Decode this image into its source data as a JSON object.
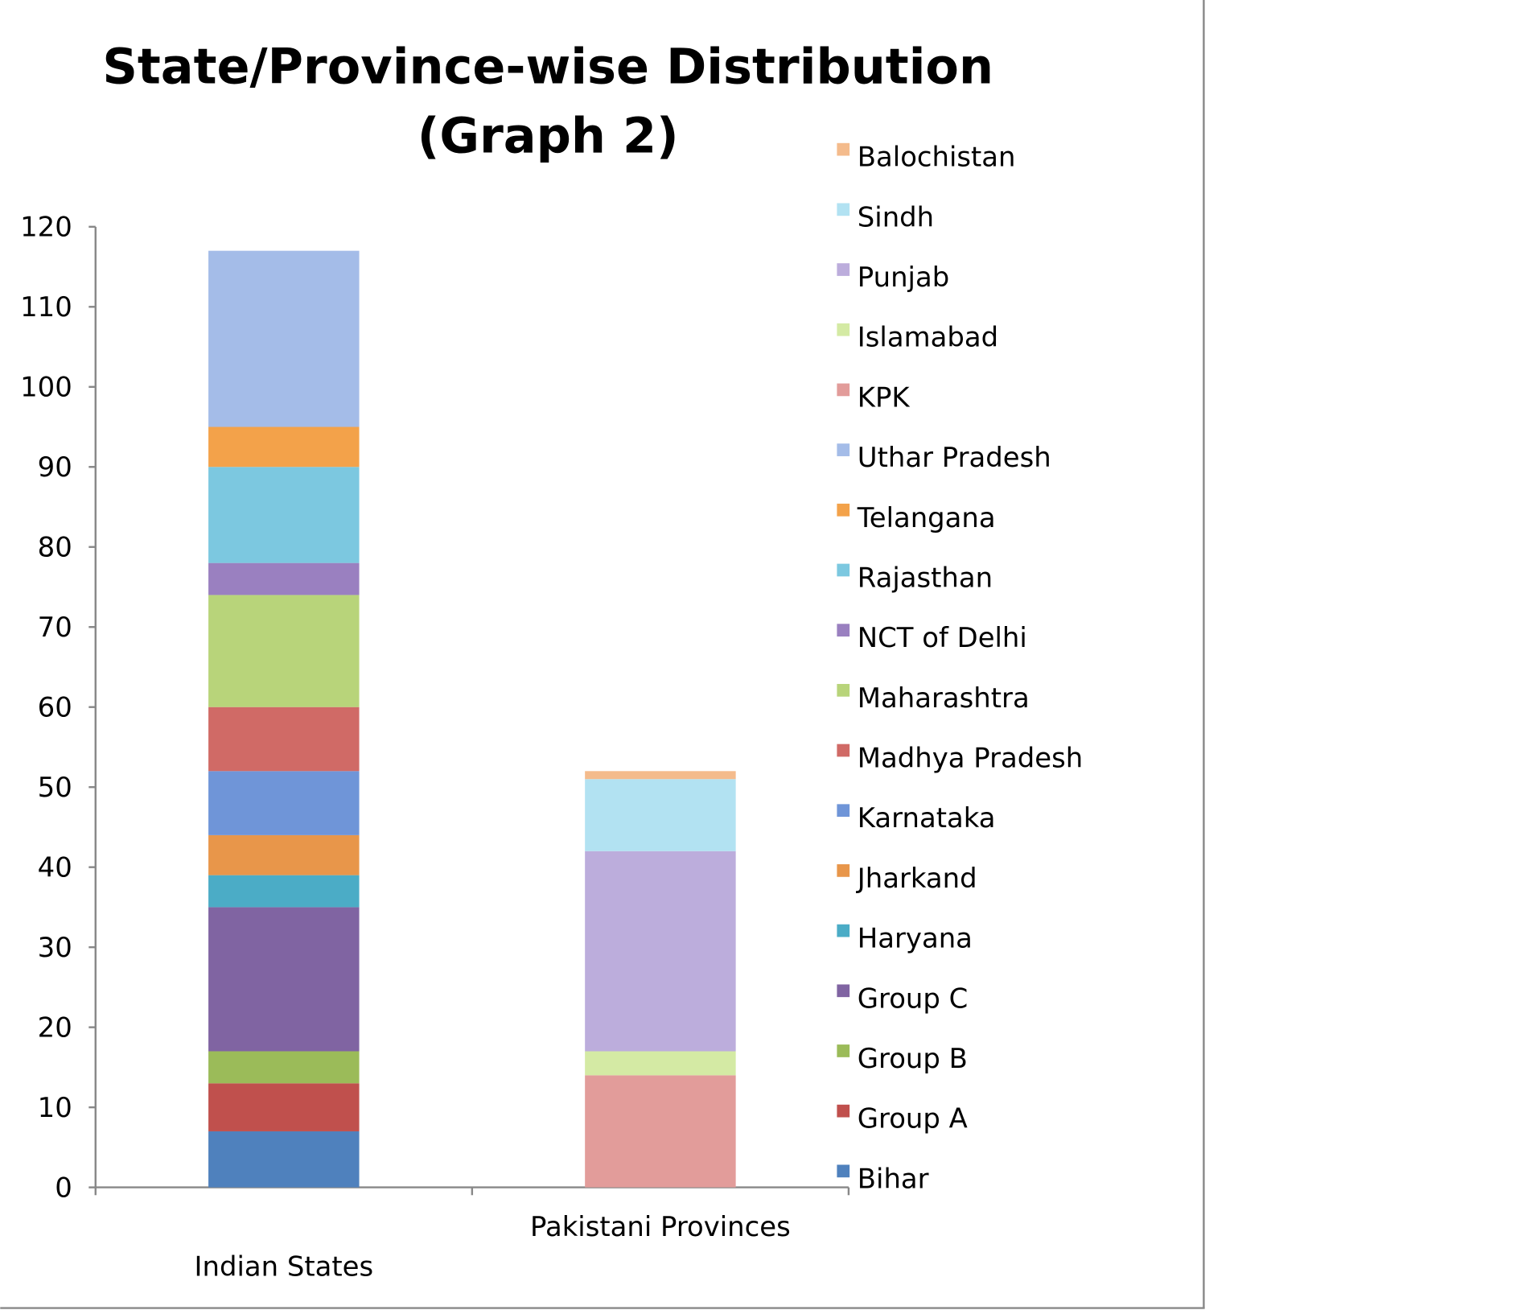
{
  "chart_data": {
    "type": "stacked_bar",
    "title": [
      "State/Province-wise Distribution",
      "(Graph 2)"
    ],
    "categories": [
      "Indian States",
      "Pakistani Provinces"
    ],
    "ylim": [
      0,
      120
    ],
    "yticks": [
      0,
      10,
      20,
      30,
      40,
      50,
      60,
      70,
      80,
      90,
      100,
      110,
      120
    ],
    "legend": "right",
    "series": [
      {
        "name": "Bihar",
        "color": "#4f81bd",
        "values": [
          7,
          null
        ]
      },
      {
        "name": "Group A",
        "color": "#c0504d",
        "values": [
          6,
          null
        ]
      },
      {
        "name": "Group B",
        "color": "#9bbb59",
        "values": [
          4,
          null
        ]
      },
      {
        "name": "Group C",
        "color": "#8064a2",
        "values": [
          18,
          null
        ]
      },
      {
        "name": "Haryana",
        "color": "#4bacc6",
        "values": [
          4,
          null
        ]
      },
      {
        "name": "Jharkand",
        "color": "#e8964a",
        "values": [
          5,
          null
        ]
      },
      {
        "name": "Karnataka",
        "color": "#6f95d8",
        "values": [
          8,
          null
        ]
      },
      {
        "name": "Madhya Pradesh",
        "color": "#d06a66",
        "values": [
          8,
          null
        ]
      },
      {
        "name": "Maharashtra",
        "color": "#b8d47a",
        "values": [
          14,
          null
        ]
      },
      {
        "name": "NCT of Delhi",
        "color": "#9a80c0",
        "values": [
          4,
          null
        ]
      },
      {
        "name": "Rajasthan",
        "color": "#7cc8e0",
        "values": [
          12,
          null
        ]
      },
      {
        "name": "Telangana",
        "color": "#f3a24a",
        "values": [
          5,
          null
        ]
      },
      {
        "name": "Uthar Pradesh",
        "color": "#a4bce8",
        "values": [
          22,
          null
        ]
      },
      {
        "name": "KPK",
        "color": "#e29c9a",
        "values": [
          null,
          14
        ]
      },
      {
        "name": "Islamabad",
        "color": "#d4eaa4",
        "values": [
          null,
          3
        ]
      },
      {
        "name": "Punjab",
        "color": "#bcaddc",
        "values": [
          null,
          25
        ]
      },
      {
        "name": "Sindh",
        "color": "#b2e2f2",
        "values": [
          null,
          9
        ]
      },
      {
        "name": "Balochistan",
        "color": "#f4bb8c",
        "values": [
          null,
          1
        ]
      }
    ]
  }
}
